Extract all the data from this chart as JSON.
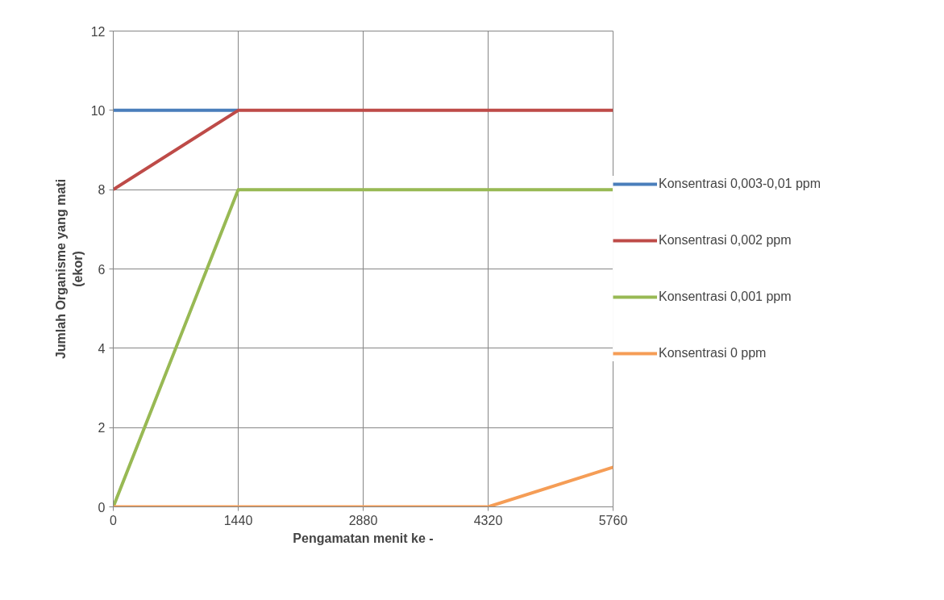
{
  "chart_data": {
    "type": "line",
    "xlabel": "Pengamatan menit ke -",
    "ylabel": "Jumlah Organisme yang mati\n(ekor)",
    "x": [
      0,
      1440,
      2880,
      4320,
      5760
    ],
    "series": [
      {
        "name": "Konsentrasi 0,003-0,01 ppm",
        "color": "#4a7ebb",
        "values": [
          10,
          10,
          null,
          null,
          null
        ]
      },
      {
        "name": "Konsentrasi 0,002 ppm",
        "color": "#be4b48",
        "values": [
          8,
          10,
          10,
          10,
          10
        ]
      },
      {
        "name": "Konsentrasi 0,001 ppm",
        "color": "#98b954",
        "values": [
          0,
          8,
          8,
          8,
          8
        ]
      },
      {
        "name": "Konsentrasi 0 ppm",
        "color": "#f59d56",
        "values": [
          0,
          0,
          0,
          0,
          1
        ]
      }
    ],
    "xlim": [
      0,
      5760
    ],
    "xticks": [
      0,
      1440,
      2880,
      4320,
      5760
    ],
    "ylim": [
      0,
      12
    ],
    "yticks": [
      0,
      2,
      4,
      6,
      8,
      10,
      12
    ],
    "grid": true,
    "legend": "right",
    "marker": "none",
    "line_style": "solid"
  }
}
